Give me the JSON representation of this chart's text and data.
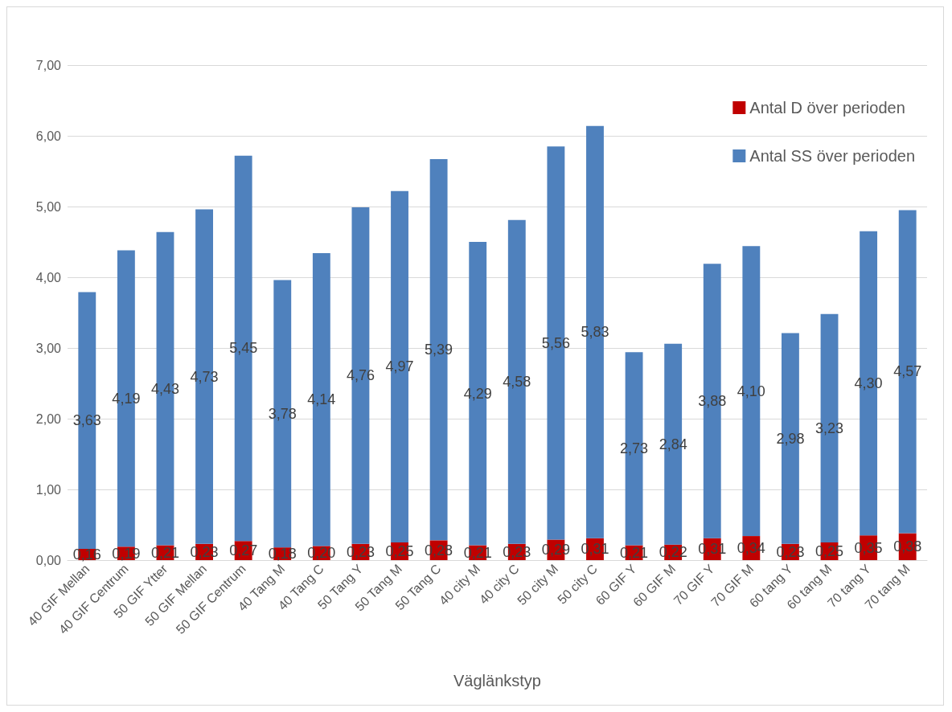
{
  "chart_data": {
    "type": "bar",
    "xlabel": "Väglänkstyp",
    "stacked": true,
    "grid": "y",
    "legend": "top right",
    "categories": [
      "40 GIF Mellan",
      "40 GIF Centrum",
      "50 GIF Ytter",
      "50 GIF Mellan",
      "50 GIF Centrum",
      "40 Tang M",
      "40 Tang C",
      "50 Tang Y",
      "50 Tang M",
      "50 Tang C",
      "40 city M",
      "40 city C",
      "50 city M",
      "50 city C",
      "60 GIF Y",
      "60 GIF M",
      "70 GIF Y",
      "70 GIF M",
      "60 tang Y",
      "60 tang M",
      "70 tang Y",
      "70 tang M"
    ],
    "series": [
      {
        "name": "Antal D över perioden",
        "color": "#c00000",
        "values": [
          0.16,
          0.19,
          0.21,
          0.23,
          0.27,
          0.18,
          0.2,
          0.23,
          0.25,
          0.28,
          0.21,
          0.23,
          0.29,
          0.31,
          0.21,
          0.22,
          0.31,
          0.34,
          0.23,
          0.25,
          0.35,
          0.38
        ],
        "value_labels": [
          "0,16",
          "0,19",
          "0,21",
          "0,23",
          "0,27",
          "0,18",
          "0,20",
          "0,23",
          "0,25",
          "0,28",
          "0,21",
          "0,23",
          "0,29",
          "0,31",
          "0,21",
          "0,22",
          "0,31",
          "0,34",
          "0,23",
          "0,25",
          "0,35",
          "0,38"
        ]
      },
      {
        "name": "Antal SS över perioden",
        "color": "#4f81bd",
        "values": [
          3.63,
          4.19,
          4.43,
          4.73,
          5.45,
          3.78,
          4.14,
          4.76,
          4.97,
          5.39,
          4.29,
          4.58,
          5.56,
          5.83,
          2.73,
          2.84,
          3.88,
          4.1,
          2.98,
          3.23,
          4.3,
          4.57
        ],
        "value_labels": [
          "3,63",
          "4,19",
          "4,43",
          "4,73",
          "5,45",
          "3,78",
          "4,14",
          "4,76",
          "4,97",
          "5,39",
          "4,29",
          "4,58",
          "5,56",
          "5,83",
          "2,73",
          "2,84",
          "3,88",
          "4,10",
          "2,98",
          "3,23",
          "4,30",
          "4,57"
        ]
      }
    ],
    "ylim": [
      0,
      7
    ],
    "yticks": [
      {
        "value": 0,
        "label": "0,00"
      },
      {
        "value": 1,
        "label": "1,00"
      },
      {
        "value": 2,
        "label": "2,00"
      },
      {
        "value": 3,
        "label": "3,00"
      },
      {
        "value": 4,
        "label": "4,00"
      },
      {
        "value": 5,
        "label": "5,00"
      },
      {
        "value": 6,
        "label": "6,00"
      },
      {
        "value": 7,
        "label": "7,00"
      }
    ]
  }
}
